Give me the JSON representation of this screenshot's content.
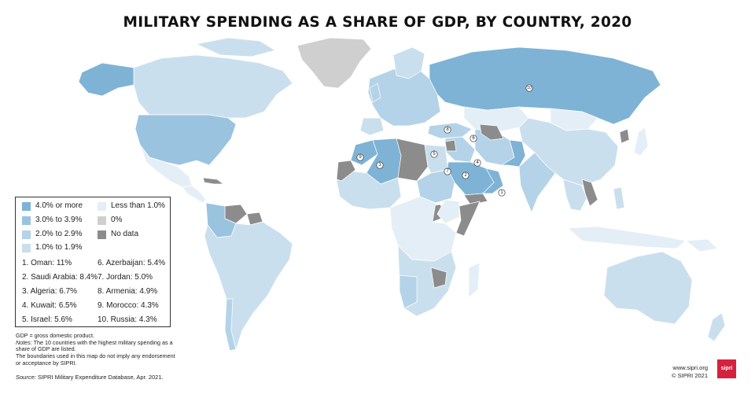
{
  "title": "MILITARY SPENDING AS A SHARE OF GDP, BY COUNTRY, 2020",
  "colors": {
    "c4_plus": "#7fb3d5",
    "c3_39": "#9ac3df",
    "c2_29": "#b4d3e8",
    "c1_19": "#cadfee",
    "lt1": "#e4eef6",
    "zero": "#cfcfcf",
    "nodata": "#8c8c8c",
    "logo": "#d4213d"
  },
  "legend": {
    "categories": [
      {
        "label": "4.0% or more",
        "color_key": "c4_plus"
      },
      {
        "label": "3.0% to 3.9%",
        "color_key": "c3_39"
      },
      {
        "label": "2.0% to 2.9%",
        "color_key": "c2_29"
      },
      {
        "label": "1.0% to 1.9%",
        "color_key": "c1_19"
      },
      {
        "label": "Less than 1.0%",
        "color_key": "lt1"
      },
      {
        "label": "0%",
        "color_key": "zero"
      },
      {
        "label": "No data",
        "color_key": "nodata"
      }
    ],
    "top10": [
      "1. Oman: 11%",
      "2. Saudi Arabia: 8.4%",
      "3. Algeria: 6.7%",
      "4. Kuwait: 6.5%",
      "5. Israel: 5.6%",
      "6. Azerbaijan: 5.4%",
      "7. Jordan: 5.0%",
      "8. Armenia: 4.9%",
      "9. Morocco: 4.3%",
      "10. Russia: 4.3%"
    ]
  },
  "map_markers": [
    "1",
    "2",
    "3",
    "4",
    "5",
    "6",
    "7",
    "8",
    "9",
    "10"
  ],
  "notes": {
    "gdp": "GDP = gross domestic product.",
    "notes_label": "Notes:",
    "notes_line1": " The 10 countries with the highest military spending as a",
    "notes_line2": "share of GDP are listed.",
    "notes_line3": "The boundaries used in this map do not imply any endorsement",
    "notes_line4": "or acceptance by SIPRI."
  },
  "source_label": "Source:",
  "source_text": " SIPRI Military Expenditure Database, Apr. 2021.",
  "credits": {
    "url": "www.sipri.org",
    "copyright": "© SIPRI 2021"
  },
  "logo_text": "sipri"
}
